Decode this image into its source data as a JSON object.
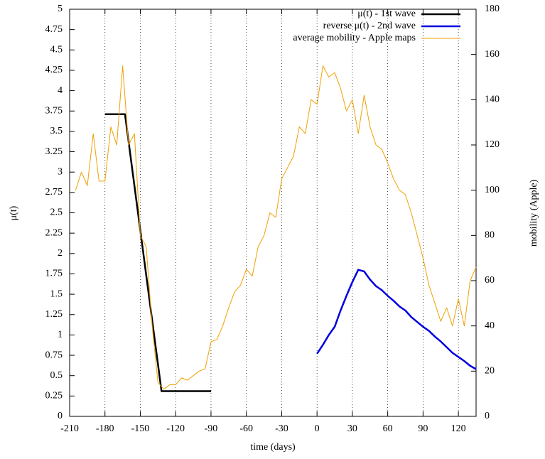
{
  "chart_data": {
    "type": "line",
    "x_label": "time (days)",
    "y_label": "μ(t)",
    "y2_label": "mobility (Apple)",
    "xlim": [
      -210,
      135
    ],
    "xticks": [
      -210,
      -180,
      -150,
      -120,
      -90,
      -60,
      -30,
      0,
      30,
      60,
      90,
      120
    ],
    "ylim": [
      0,
      5
    ],
    "yticks": [
      0,
      0.25,
      0.5,
      0.75,
      1,
      1.25,
      1.5,
      1.75,
      2,
      2.25,
      2.5,
      2.75,
      3,
      3.25,
      3.5,
      3.75,
      4,
      4.25,
      4.5,
      4.75,
      5
    ],
    "y2lim": [
      0,
      180
    ],
    "y2ticks": [
      0,
      20,
      40,
      60,
      80,
      100,
      120,
      140,
      160,
      180
    ],
    "grid": true,
    "legend": "top right",
    "series": [
      {
        "name": "μ(t) - 1st wave",
        "color": "#000000",
        "width": 2.5,
        "x": [
          -180,
          -163,
          -132,
          -90
        ],
        "values": [
          3.71,
          3.71,
          0.31,
          0.31
        ]
      },
      {
        "name": "reverse μ(t) - 2nd wave",
        "color": "#0000e0",
        "width": 2.5,
        "x": [
          0,
          5,
          10,
          15,
          20,
          25,
          30,
          35,
          40,
          45,
          50,
          55,
          60,
          65,
          70,
          75,
          80,
          85,
          90,
          95,
          100,
          105,
          110,
          115,
          120,
          125,
          130,
          135
        ],
        "values": [
          0.77,
          0.88,
          1.0,
          1.1,
          1.3,
          1.48,
          1.65,
          1.8,
          1.78,
          1.68,
          1.6,
          1.55,
          1.48,
          1.42,
          1.35,
          1.3,
          1.22,
          1.16,
          1.1,
          1.05,
          0.98,
          0.92,
          0.85,
          0.78,
          0.73,
          0.68,
          0.62,
          0.58
        ]
      },
      {
        "name": "average mobility - Apple maps",
        "color": "#f0a000",
        "width": 1,
        "axis": "y2",
        "x": [
          -205,
          -200,
          -195,
          -190,
          -185,
          -180,
          -175,
          -170,
          -165,
          -160,
          -155,
          -150,
          -145,
          -140,
          -135,
          -130,
          -125,
          -120,
          -115,
          -110,
          -105,
          -100,
          -95,
          -90,
          -85,
          -80,
          -75,
          -70,
          -65,
          -60,
          -55,
          -50,
          -45,
          -40,
          -35,
          -30,
          -25,
          -20,
          -15,
          -10,
          -5,
          0,
          5,
          10,
          15,
          20,
          25,
          30,
          35,
          40,
          45,
          50,
          55,
          60,
          65,
          70,
          75,
          80,
          85,
          90,
          95,
          100,
          105,
          110,
          115,
          120,
          125,
          130,
          135
        ],
        "values": [
          100,
          108,
          102,
          125,
          104,
          104,
          128,
          120,
          155,
          120,
          125,
          80,
          75,
          40,
          15,
          12,
          14,
          14,
          17,
          16,
          18,
          20,
          21,
          33,
          34,
          40,
          48,
          55,
          58,
          65,
          62,
          75,
          80,
          90,
          88,
          105,
          110,
          115,
          128,
          125,
          140,
          138,
          155,
          150,
          152,
          145,
          135,
          140,
          125,
          142,
          128,
          120,
          118,
          112,
          105,
          100,
          98,
          90,
          80,
          70,
          58,
          50,
          42,
          48,
          40,
          52,
          40,
          60,
          66
        ]
      }
    ]
  }
}
